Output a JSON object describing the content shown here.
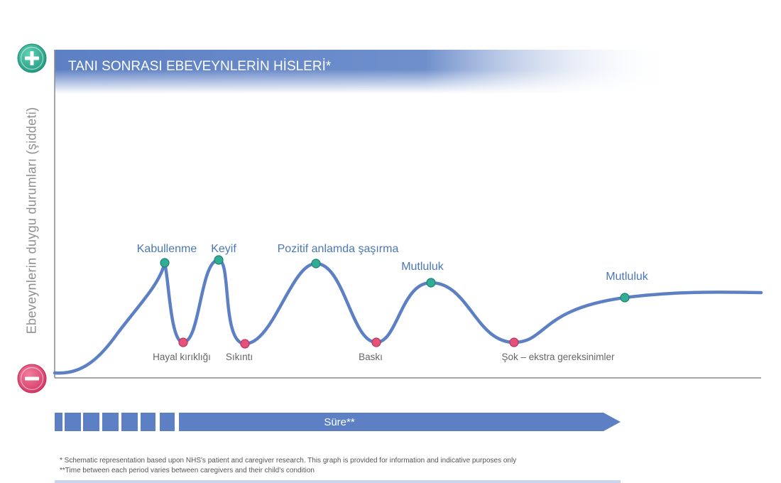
{
  "title": "TANI SONRASI EBEVEYNLERİN HİSLERİ*",
  "y_axis_label": "Ebeveynlerin duygu durumları (şiddeti)",
  "time_label": "Süre**",
  "footnotes": [
    "* Schematic representation based upon NHS's patient and caregiver research. This graph is provided for information and indicative purposes only",
    "**Time between each period varies between caregivers and their child's condition"
  ],
  "plus_icon": "plus-icon",
  "minus_icon": "minus-icon",
  "colors": {
    "curve": "#5d80c4",
    "positive_point": "#2fae95",
    "negative_point": "#e4517a",
    "positive_label": "#4a78b5",
    "negative_label": "#666666"
  },
  "positive_points": [
    {
      "label": "Kabullenme"
    },
    {
      "label": "Keyif"
    },
    {
      "label": "Pozitif anlamda şaşırma"
    },
    {
      "label": "Mutluluk"
    },
    {
      "label": "Mutluluk"
    }
  ],
  "negative_points": [
    {
      "label": "Hayal kırıklığı"
    },
    {
      "label": "Sıkıntı"
    },
    {
      "label": "Baskı"
    },
    {
      "label": "Şok – ekstra gereksinimler"
    }
  ]
}
